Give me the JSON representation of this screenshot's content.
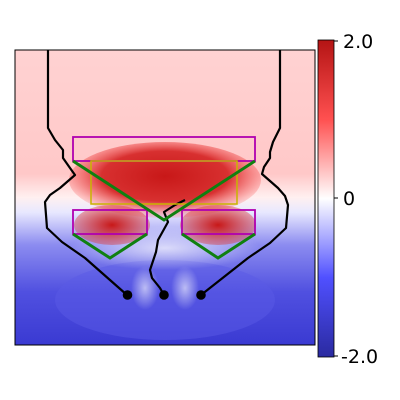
{
  "chart_data": {
    "type": "heatmap",
    "title": "",
    "xlabel": "",
    "ylabel": "",
    "colormap": "bwr",
    "colorbar": {
      "range": [
        -2.0,
        2.0
      ],
      "tick_labels": [
        "2.0",
        "0",
        "-2.0"
      ],
      "tick_values": [
        2.0,
        0,
        -2.0
      ]
    },
    "colors": {
      "positive": "#dd2020",
      "negative": "#2020c8",
      "zero": "#ffffff",
      "electrode_lines": "#000000",
      "upper_rectangles": "#b000b0",
      "center_rectangle": "#c8b400",
      "triangles": "#108010"
    },
    "overlays": {
      "electrode_tips": 3,
      "rectangles": 4,
      "triangles": 3
    }
  }
}
